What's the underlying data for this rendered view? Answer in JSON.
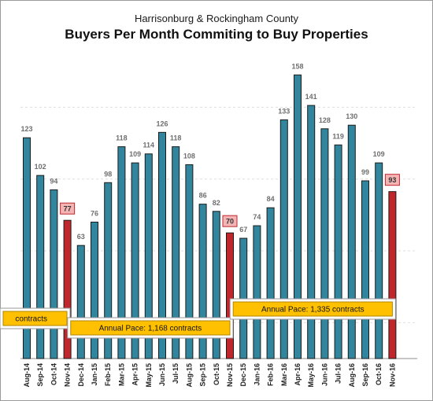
{
  "chart_data": {
    "type": "bar",
    "subtitle": "Harrisonburg & Rockingham County",
    "title": "Buyers Per Month Commiting to Buy Properties",
    "xlabel": "",
    "ylabel": "",
    "ylim": [
      0,
      170
    ],
    "grid": true,
    "categories": [
      "Aug-14",
      "Sep-14",
      "Oct-14",
      "Nov-14",
      "Dec-14",
      "Jan-15",
      "Feb-15",
      "Mar-15",
      "Apr-15",
      "May-15",
      "Jun-15",
      "Jul-15",
      "Aug-15",
      "Sep-15",
      "Oct-15",
      "Nov-15",
      "Dec-15",
      "Jan-16",
      "Feb-16",
      "Mar-16",
      "Apr-16",
      "May-16",
      "Jun-16",
      "Jul-16",
      "Aug-16",
      "Sep-16",
      "Oct-16",
      "Nov-16"
    ],
    "values": [
      123,
      102,
      94,
      77,
      63,
      76,
      98,
      118,
      109,
      114,
      126,
      118,
      108,
      86,
      82,
      70,
      67,
      74,
      84,
      133,
      158,
      141,
      128,
      119,
      130,
      99,
      109,
      93
    ],
    "highlighted": [
      "Nov-14",
      "Nov-15",
      "Nov-16"
    ],
    "colors": {
      "bar": "#31859c",
      "highlight": "#c0272d",
      "label_box": "#f4b4b4",
      "pace_box": "#ffc000"
    },
    "annotations": [
      {
        "text": "contracts",
        "categories": [
          "Aug-14",
          "Nov-14"
        ]
      },
      {
        "text": "Annual Pace: 1,168 contracts",
        "categories": [
          "Dec-14",
          "Nov-15"
        ]
      },
      {
        "text": "Annual Pace: 1,335 contracts",
        "categories": [
          "Dec-15",
          "Nov-16"
        ]
      }
    ]
  }
}
